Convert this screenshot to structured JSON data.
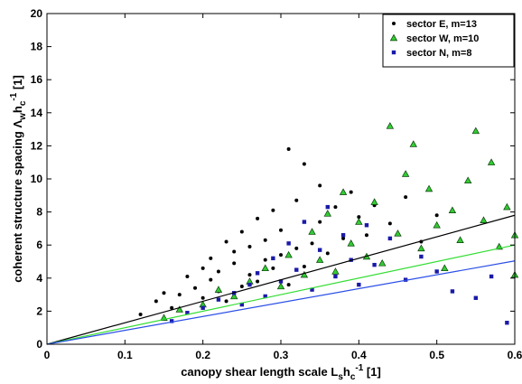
{
  "chart_data": {
    "type": "scatter",
    "xlabel": {
      "base": "canopy shear length scale L",
      "sub1": "s",
      "mid": "h",
      "sub2": "c",
      "sup": "-1",
      "unit": " [1]"
    },
    "ylabel": {
      "base": "coherent structure spacing Λ",
      "sub1": "w",
      "mid": "h",
      "sub2": "c",
      "sup": "-1",
      "unit": " [1]"
    },
    "xlim": [
      0,
      0.6
    ],
    "ylim": [
      0,
      20
    ],
    "xticks": [
      "0",
      "0.1",
      "0.2",
      "0.3",
      "0.4",
      "0.5",
      "0.6"
    ],
    "yticks": [
      "0",
      "2",
      "4",
      "6",
      "8",
      "10",
      "12",
      "14",
      "16",
      "18",
      "20"
    ],
    "legend_position": "top-right",
    "series": [
      {
        "name": "sector E,  m=13",
        "color": "#000000",
        "line_color": "#000000",
        "marker": "dot",
        "slope": 13,
        "points": [
          [
            0.12,
            1.8
          ],
          [
            0.14,
            2.6
          ],
          [
            0.15,
            3.1
          ],
          [
            0.16,
            2.2
          ],
          [
            0.17,
            3.0
          ],
          [
            0.18,
            4.1
          ],
          [
            0.19,
            3.4
          ],
          [
            0.2,
            2.8
          ],
          [
            0.2,
            4.6
          ],
          [
            0.21,
            3.9
          ],
          [
            0.21,
            5.2
          ],
          [
            0.22,
            3.2
          ],
          [
            0.22,
            4.4
          ],
          [
            0.23,
            6.2
          ],
          [
            0.23,
            2.6
          ],
          [
            0.24,
            4.9
          ],
          [
            0.24,
            5.6
          ],
          [
            0.25,
            3.5
          ],
          [
            0.25,
            6.8
          ],
          [
            0.26,
            4.2
          ],
          [
            0.26,
            5.9
          ],
          [
            0.27,
            7.6
          ],
          [
            0.27,
            3.8
          ],
          [
            0.28,
            5.1
          ],
          [
            0.28,
            6.3
          ],
          [
            0.29,
            4.6
          ],
          [
            0.29,
            8.1
          ],
          [
            0.3,
            5.4
          ],
          [
            0.3,
            6.9
          ],
          [
            0.31,
            11.8
          ],
          [
            0.31,
            3.6
          ],
          [
            0.32,
            5.8
          ],
          [
            0.32,
            8.7
          ],
          [
            0.33,
            4.7
          ],
          [
            0.33,
            10.9
          ],
          [
            0.34,
            6.1
          ],
          [
            0.35,
            7.4
          ],
          [
            0.35,
            9.6
          ],
          [
            0.36,
            5.5
          ],
          [
            0.37,
            8.3
          ],
          [
            0.38,
            6.4
          ],
          [
            0.39,
            9.2
          ],
          [
            0.4,
            7.7
          ],
          [
            0.41,
            6.6
          ],
          [
            0.42,
            8.4
          ],
          [
            0.44,
            7.3
          ],
          [
            0.46,
            8.9
          ],
          [
            0.48,
            6.2
          ],
          [
            0.5,
            7.8
          ]
        ]
      },
      {
        "name": "sector W, m=10",
        "color": "#33cc33",
        "line_color": "#33dd33",
        "marker": "triangle",
        "slope": 10,
        "points": [
          [
            0.15,
            1.6
          ],
          [
            0.17,
            2.1
          ],
          [
            0.2,
            2.4
          ],
          [
            0.22,
            3.3
          ],
          [
            0.24,
            2.9
          ],
          [
            0.26,
            3.8
          ],
          [
            0.28,
            4.6
          ],
          [
            0.3,
            3.5
          ],
          [
            0.31,
            5.4
          ],
          [
            0.33,
            4.2
          ],
          [
            0.34,
            6.8
          ],
          [
            0.35,
            5.1
          ],
          [
            0.36,
            7.9
          ],
          [
            0.37,
            4.4
          ],
          [
            0.38,
            9.2
          ],
          [
            0.39,
            6.1
          ],
          [
            0.4,
            7.4
          ],
          [
            0.41,
            5.3
          ],
          [
            0.42,
            8.6
          ],
          [
            0.43,
            4.9
          ],
          [
            0.44,
            13.2
          ],
          [
            0.45,
            6.7
          ],
          [
            0.46,
            10.3
          ],
          [
            0.47,
            12.1
          ],
          [
            0.48,
            5.8
          ],
          [
            0.49,
            9.4
          ],
          [
            0.5,
            7.2
          ],
          [
            0.51,
            4.6
          ],
          [
            0.52,
            8.1
          ],
          [
            0.53,
            6.3
          ],
          [
            0.54,
            9.9
          ],
          [
            0.55,
            12.9
          ],
          [
            0.56,
            7.5
          ],
          [
            0.57,
            11.0
          ],
          [
            0.58,
            5.9
          ],
          [
            0.59,
            8.3
          ],
          [
            0.6,
            6.6
          ],
          [
            0.6,
            4.2
          ]
        ]
      },
      {
        "name": "sector N,  m=8",
        "color": "#1a1aa8",
        "line_color": "#2a4ee8",
        "marker": "square",
        "slope": 8.4,
        "points": [
          [
            0.16,
            1.4
          ],
          [
            0.18,
            1.9
          ],
          [
            0.2,
            2.2
          ],
          [
            0.22,
            2.7
          ],
          [
            0.24,
            3.1
          ],
          [
            0.25,
            2.4
          ],
          [
            0.26,
            3.6
          ],
          [
            0.27,
            4.3
          ],
          [
            0.28,
            2.9
          ],
          [
            0.29,
            5.2
          ],
          [
            0.3,
            3.8
          ],
          [
            0.31,
            6.1
          ],
          [
            0.32,
            4.5
          ],
          [
            0.33,
            7.4
          ],
          [
            0.34,
            3.3
          ],
          [
            0.35,
            5.7
          ],
          [
            0.36,
            8.3
          ],
          [
            0.37,
            4.1
          ],
          [
            0.38,
            6.6
          ],
          [
            0.39,
            5.1
          ],
          [
            0.4,
            3.6
          ],
          [
            0.41,
            7.2
          ],
          [
            0.42,
            4.8
          ],
          [
            0.44,
            6.4
          ],
          [
            0.46,
            3.9
          ],
          [
            0.48,
            5.3
          ],
          [
            0.5,
            4.4
          ],
          [
            0.52,
            3.2
          ],
          [
            0.55,
            2.8
          ],
          [
            0.57,
            4.1
          ],
          [
            0.59,
            1.3
          ]
        ]
      }
    ]
  }
}
